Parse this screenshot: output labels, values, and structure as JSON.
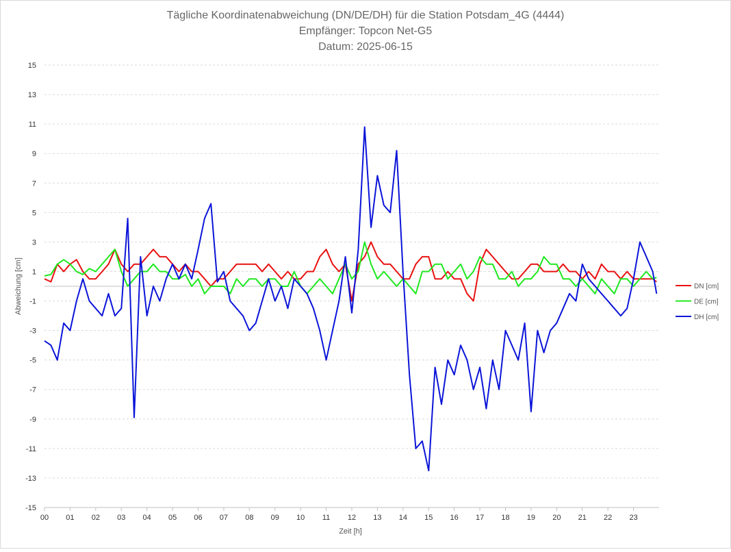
{
  "chart_data": {
    "type": "line",
    "title": "Tägliche Koordinatenabweichung (DN/DE/DH) für die Station Potsdam_4G (4444)",
    "subtitle": [
      "Empfänger: Topcon Net-G5",
      "Datum: 2025-06-15"
    ],
    "xlabel": "Zeit [h]",
    "ylabel": "Abweichung [cm]",
    "xlim": [
      0,
      24
    ],
    "ylim": [
      -15,
      15
    ],
    "yticks": [
      -15,
      -13,
      -11,
      -9,
      -7,
      -5,
      -3,
      -1,
      1,
      3,
      5,
      7,
      9,
      11,
      13,
      15
    ],
    "xticks": [
      {
        "value": 0,
        "label": "00"
      },
      {
        "value": 1,
        "label": "01"
      },
      {
        "value": 2,
        "label": "02"
      },
      {
        "value": 3,
        "label": "03"
      },
      {
        "value": 4,
        "label": "04"
      },
      {
        "value": 5,
        "label": "05"
      },
      {
        "value": 6,
        "label": "06"
      },
      {
        "value": 7,
        "label": "07"
      },
      {
        "value": 8,
        "label": "08"
      },
      {
        "value": 9,
        "label": "09"
      },
      {
        "value": 10,
        "label": "10"
      },
      {
        "value": 11,
        "label": "11"
      },
      {
        "value": 12,
        "label": "12"
      },
      {
        "value": 13,
        "label": "13"
      },
      {
        "value": 14,
        "label": "14"
      },
      {
        "value": 15,
        "label": "15"
      },
      {
        "value": 16,
        "label": "16"
      },
      {
        "value": 17,
        "label": "17"
      },
      {
        "value": 18,
        "label": "18"
      },
      {
        "value": 19,
        "label": "19"
      },
      {
        "value": 20,
        "label": "20"
      },
      {
        "value": 21,
        "label": "21"
      },
      {
        "value": 22,
        "label": "22"
      },
      {
        "value": 23,
        "label": "23"
      }
    ],
    "grid": true,
    "legend": "right",
    "x": [
      0,
      0.25,
      0.5,
      0.75,
      1,
      1.25,
      1.5,
      1.75,
      2,
      2.25,
      2.5,
      2.75,
      3,
      3.25,
      3.5,
      3.75,
      4,
      4.25,
      4.5,
      4.75,
      5,
      5.25,
      5.5,
      5.75,
      6,
      6.25,
      6.5,
      6.75,
      7,
      7.25,
      7.5,
      7.75,
      8,
      8.25,
      8.5,
      8.75,
      9,
      9.25,
      9.5,
      9.75,
      10,
      10.25,
      10.5,
      10.75,
      11,
      11.25,
      11.5,
      11.75,
      12,
      12.25,
      12.5,
      12.75,
      13,
      13.25,
      13.5,
      13.75,
      14,
      14.25,
      14.5,
      14.75,
      15,
      15.25,
      15.5,
      15.75,
      16,
      16.25,
      16.5,
      16.75,
      17,
      17.25,
      17.5,
      17.75,
      18,
      18.25,
      18.5,
      18.75,
      19,
      19.25,
      19.5,
      19.75,
      20,
      20.25,
      20.5,
      20.75,
      21,
      21.25,
      21.5,
      21.75,
      22,
      22.25,
      22.5,
      22.75,
      23,
      23.25,
      23.5,
      23.75,
      23.9
    ],
    "series": [
      {
        "name": "DN [cm]",
        "color": "#e81010",
        "values": [
          0.5,
          0.3,
          1.5,
          1.0,
          1.5,
          1.8,
          1.0,
          0.5,
          0.5,
          1.0,
          1.5,
          2.5,
          1.5,
          1.0,
          1.5,
          1.5,
          2.0,
          2.5,
          2.0,
          2.0,
          1.5,
          1.0,
          1.5,
          1.0,
          1.0,
          0.5,
          0,
          0.5,
          0.5,
          1.0,
          1.5,
          1.5,
          1.5,
          1.5,
          1.0,
          1.5,
          1.0,
          0.5,
          1.0,
          0.5,
          0.5,
          1.0,
          1.0,
          2.0,
          2.5,
          1.5,
          1.0,
          1.5,
          -1.0,
          1.5,
          2.0,
          3.0,
          2.0,
          1.5,
          1.5,
          1.0,
          0.5,
          0.5,
          1.5,
          2.0,
          2.0,
          0.5,
          0.5,
          1.0,
          0.5,
          0.5,
          -0.5,
          -1.0,
          1.5,
          2.5,
          2.0,
          1.5,
          1.0,
          0.5,
          0.5,
          1.0,
          1.5,
          1.5,
          1.0,
          1.0,
          1.0,
          1.5,
          1.0,
          1.0,
          0.5,
          1.0,
          0.5,
          1.5,
          1.0,
          1.0,
          0.5,
          1.0,
          0.5,
          0.5,
          0.5,
          0.5,
          0.3
        ]
      },
      {
        "name": "DE [cm]",
        "color": "#1ee81e",
        "values": [
          0.7,
          0.8,
          1.5,
          1.8,
          1.5,
          1.0,
          0.8,
          1.2,
          1.0,
          1.5,
          2.0,
          2.5,
          1.0,
          0,
          0.5,
          1.0,
          1.0,
          1.5,
          1.0,
          1.0,
          0.5,
          0.5,
          0.8,
          0,
          0.5,
          -0.5,
          0,
          0,
          0,
          -0.5,
          0.5,
          0,
          0.5,
          0.5,
          0,
          0.5,
          0.5,
          0,
          0,
          1.0,
          0,
          -0.5,
          0,
          0.5,
          0,
          -0.5,
          0.5,
          1.5,
          0.5,
          1.0,
          3.0,
          1.5,
          0.5,
          1.0,
          0.5,
          0,
          0.5,
          0,
          -0.5,
          1.0,
          1.0,
          1.5,
          1.5,
          0.5,
          1.0,
          1.5,
          0.5,
          1.0,
          2.0,
          1.5,
          1.5,
          0.5,
          0.5,
          1.0,
          0,
          0.5,
          0.5,
          1.0,
          2.0,
          1.5,
          1.5,
          0.5,
          0.5,
          0,
          0.5,
          0,
          -0.5,
          0.5,
          0,
          -0.5,
          0.5,
          0.5,
          0,
          0.5,
          1.0,
          0.5,
          0.6
        ]
      },
      {
        "name": "DH [cm]",
        "color": "#0a14d8",
        "values": [
          -3.7,
          -4.0,
          -5.0,
          -2.5,
          -3.0,
          -1.0,
          0.5,
          -1.0,
          -1.5,
          -2.0,
          -0.5,
          -2.0,
          -1.5,
          4.6,
          -8.9,
          2.0,
          -2.0,
          0,
          -1.0,
          0.5,
          1.5,
          0.5,
          1.5,
          0.5,
          2.5,
          4.6,
          5.6,
          0.3,
          1.0,
          -1.0,
          -1.5,
          -2.0,
          -3.0,
          -2.5,
          -1.0,
          0.5,
          -1.0,
          0,
          -1.5,
          0.5,
          0,
          -0.5,
          -1.5,
          -3.0,
          -5.0,
          -3.0,
          -1.0,
          2.0,
          -1.8,
          2.5,
          10.8,
          4.0,
          7.5,
          5.5,
          5.0,
          9.2,
          1.0,
          -6.0,
          -11.0,
          -10.5,
          -12.5,
          -5.5,
          -8.0,
          -5.0,
          -6.0,
          -4.0,
          -5.0,
          -7.0,
          -5.5,
          -8.3,
          -5.0,
          -7.0,
          -3.0,
          -4.0,
          -5.0,
          -2.5,
          -8.5,
          -3.0,
          -4.5,
          -3.0,
          -2.5,
          -1.5,
          -0.5,
          -1.0,
          1.5,
          0.5,
          0,
          -0.5,
          -1.0,
          -1.5,
          -2.0,
          -1.5,
          0.5,
          3.0,
          2.0,
          1.0,
          -0.5
        ]
      }
    ]
  }
}
